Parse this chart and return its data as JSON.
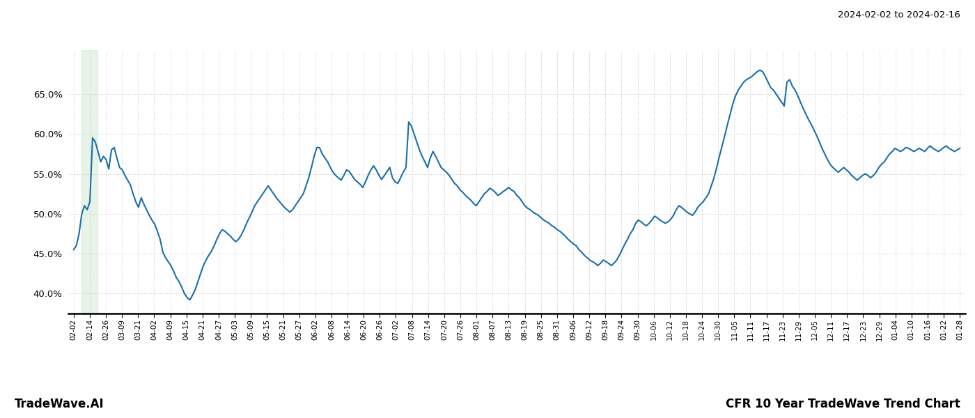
{
  "title_right": "2024-02-02 to 2024-02-16",
  "footer_left": "TradeWave.AI",
  "footer_right": "CFR 10 Year TradeWave Trend Chart",
  "line_color": "#1a6fa8",
  "background_color": "#ffffff",
  "grid_color": "#c8c8c8",
  "shade_color": "#c8e6c9",
  "shade_alpha": 0.45,
  "ylim": [
    0.375,
    0.705
  ],
  "yticks": [
    0.4,
    0.45,
    0.5,
    0.55,
    0.6,
    0.65
  ],
  "xtick_labels": [
    "02-02",
    "02-14",
    "02-26",
    "03-09",
    "03-21",
    "04-02",
    "04-09",
    "04-15",
    "04-21",
    "04-27",
    "05-03",
    "05-09",
    "05-15",
    "05-21",
    "05-27",
    "06-02",
    "06-08",
    "06-14",
    "06-20",
    "06-26",
    "07-02",
    "07-08",
    "07-14",
    "07-20",
    "07-26",
    "08-01",
    "08-07",
    "08-13",
    "08-19",
    "08-25",
    "08-31",
    "09-06",
    "09-12",
    "09-18",
    "09-24",
    "09-30",
    "10-06",
    "10-12",
    "10-18",
    "10-24",
    "10-30",
    "11-05",
    "11-11",
    "11-17",
    "11-23",
    "11-29",
    "12-05",
    "12-11",
    "12-17",
    "12-23",
    "12-29",
    "01-04",
    "01-10",
    "01-16",
    "01-22",
    "01-28"
  ],
  "shade_x_start_label": "02-08",
  "shade_x_end_label": "02-20",
  "values": [
    0.455,
    0.46,
    0.475,
    0.5,
    0.51,
    0.505,
    0.515,
    0.595,
    0.59,
    0.578,
    0.565,
    0.572,
    0.568,
    0.556,
    0.58,
    0.583,
    0.57,
    0.558,
    0.555,
    0.548,
    0.542,
    0.536,
    0.525,
    0.515,
    0.508,
    0.52,
    0.512,
    0.505,
    0.498,
    0.492,
    0.487,
    0.478,
    0.468,
    0.452,
    0.445,
    0.44,
    0.435,
    0.428,
    0.42,
    0.415,
    0.408,
    0.4,
    0.395,
    0.392,
    0.398,
    0.405,
    0.415,
    0.425,
    0.435,
    0.442,
    0.448,
    0.453,
    0.46,
    0.468,
    0.475,
    0.48,
    0.478,
    0.475,
    0.472,
    0.468,
    0.465,
    0.468,
    0.473,
    0.48,
    0.488,
    0.495,
    0.502,
    0.51,
    0.515,
    0.52,
    0.525,
    0.53,
    0.535,
    0.53,
    0.525,
    0.52,
    0.516,
    0.512,
    0.508,
    0.505,
    0.502,
    0.505,
    0.51,
    0.515,
    0.52,
    0.525,
    0.535,
    0.545,
    0.558,
    0.572,
    0.583,
    0.583,
    0.575,
    0.57,
    0.565,
    0.558,
    0.552,
    0.548,
    0.545,
    0.542,
    0.548,
    0.555,
    0.553,
    0.548,
    0.543,
    0.54,
    0.537,
    0.533,
    0.54,
    0.548,
    0.555,
    0.56,
    0.555,
    0.548,
    0.543,
    0.548,
    0.553,
    0.558,
    0.545,
    0.54,
    0.538,
    0.545,
    0.552,
    0.558,
    0.615,
    0.61,
    0.6,
    0.59,
    0.58,
    0.572,
    0.565,
    0.558,
    0.57,
    0.578,
    0.572,
    0.565,
    0.558,
    0.555,
    0.552,
    0.548,
    0.543,
    0.538,
    0.535,
    0.53,
    0.527,
    0.523,
    0.52,
    0.517,
    0.513,
    0.51,
    0.515,
    0.52,
    0.525,
    0.528,
    0.532,
    0.53,
    0.527,
    0.523,
    0.525,
    0.528,
    0.53,
    0.533,
    0.53,
    0.528,
    0.523,
    0.52,
    0.515,
    0.51,
    0.507,
    0.505,
    0.502,
    0.5,
    0.498,
    0.495,
    0.492,
    0.49,
    0.488,
    0.485,
    0.483,
    0.48,
    0.478,
    0.475,
    0.472,
    0.468,
    0.465,
    0.462,
    0.46,
    0.455,
    0.452,
    0.448,
    0.445,
    0.442,
    0.44,
    0.438,
    0.435,
    0.438,
    0.442,
    0.44,
    0.438,
    0.435,
    0.438,
    0.442,
    0.448,
    0.455,
    0.462,
    0.468,
    0.475,
    0.48,
    0.488,
    0.492,
    0.49,
    0.487,
    0.485,
    0.488,
    0.492,
    0.497,
    0.495,
    0.492,
    0.49,
    0.488,
    0.49,
    0.493,
    0.498,
    0.505,
    0.51,
    0.508,
    0.505,
    0.502,
    0.5,
    0.498,
    0.502,
    0.508,
    0.512,
    0.515,
    0.52,
    0.525,
    0.535,
    0.545,
    0.558,
    0.572,
    0.585,
    0.598,
    0.612,
    0.625,
    0.638,
    0.648,
    0.655,
    0.66,
    0.665,
    0.668,
    0.67,
    0.672,
    0.675,
    0.678,
    0.68,
    0.678,
    0.672,
    0.665,
    0.658,
    0.655,
    0.65,
    0.645,
    0.64,
    0.635,
    0.665,
    0.668,
    0.66,
    0.655,
    0.648,
    0.64,
    0.632,
    0.625,
    0.618,
    0.612,
    0.605,
    0.598,
    0.59,
    0.582,
    0.575,
    0.568,
    0.562,
    0.558,
    0.555,
    0.552,
    0.555,
    0.558,
    0.555,
    0.552,
    0.548,
    0.545,
    0.542,
    0.545,
    0.548,
    0.55,
    0.548,
    0.545,
    0.548,
    0.552,
    0.558,
    0.562,
    0.565,
    0.57,
    0.575,
    0.578,
    0.582,
    0.58,
    0.578,
    0.58,
    0.583,
    0.582,
    0.58,
    0.578,
    0.58,
    0.582,
    0.58,
    0.578,
    0.582,
    0.585,
    0.582,
    0.58,
    0.578,
    0.58,
    0.583,
    0.585,
    0.582,
    0.58,
    0.578,
    0.58,
    0.582
  ]
}
